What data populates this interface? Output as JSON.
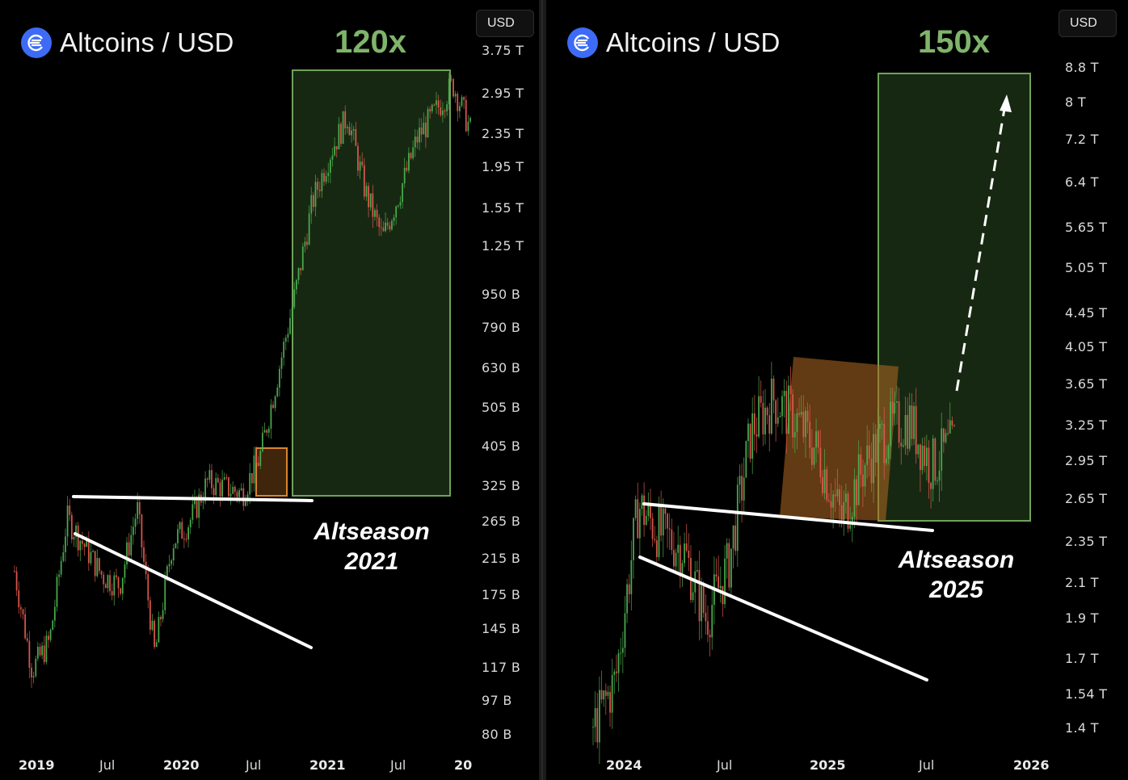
{
  "charts": [
    {
      "title": "Altcoins / USD",
      "currency": "USD",
      "multiplier_label": "120x",
      "season_label": "Altseason",
      "season_year": "2021",
      "y_ticks": [
        "3.75 T",
        "2.95 T",
        "2.35 T",
        "1.95 T",
        "1.55 T",
        "1.25 T",
        "950 B",
        "790 B",
        "630 B",
        "505 B",
        "405 B",
        "325 B",
        "265 B",
        "215 B",
        "175 B",
        "145 B",
        "117 B",
        "97 B",
        "80 B"
      ],
      "x_ticks": [
        {
          "label": "2019",
          "bold": true
        },
        {
          "label": "Jul",
          "bold": false
        },
        {
          "label": "2020",
          "bold": true
        },
        {
          "label": "Jul",
          "bold": false
        },
        {
          "label": "2021",
          "bold": true
        },
        {
          "label": "Jul",
          "bold": false
        },
        {
          "label": "20",
          "bold": true
        }
      ]
    },
    {
      "title": "Altcoins / USD",
      "currency": "USD",
      "multiplier_label": "150x",
      "season_label": "Altseason",
      "season_year": "2025",
      "y_ticks": [
        "8.8 T",
        "8 T",
        "7.2 T",
        "6.4 T",
        "5.65 T",
        "5.05 T",
        "4.45 T",
        "4.05 T",
        "3.65 T",
        "3.25 T",
        "2.95 T",
        "2.65 T",
        "2.35 T",
        "2.1 T",
        "1.9 T",
        "1.7 T",
        "1.54 T",
        "1.4 T"
      ],
      "x_ticks": [
        {
          "label": "2024",
          "bold": true
        },
        {
          "label": "Jul",
          "bold": false
        },
        {
          "label": "2025",
          "bold": true
        },
        {
          "label": "Jul",
          "bold": false
        },
        {
          "label": "2026",
          "bold": true
        }
      ]
    }
  ],
  "chart_data": [
    {
      "type": "candlestick",
      "title": "Altcoins / USD",
      "y_scale": "log",
      "y_unit": "USD",
      "x": [
        "2019-01",
        "2019-04",
        "2019-06",
        "2019-08",
        "2019-10",
        "2019-12",
        "2020-01",
        "2020-02",
        "2020-03",
        "2020-05",
        "2020-07",
        "2020-08",
        "2020-09",
        "2020-10",
        "2020-11",
        "2020-12",
        "2021-01",
        "2021-02",
        "2021-03",
        "2021-05",
        "2021-06",
        "2021-07",
        "2021-08",
        "2021-09",
        "2021-10",
        "2021-11",
        "2021-12"
      ],
      "y": [
        200,
        115,
        135,
        270,
        230,
        195,
        185,
        285,
        125,
        235,
        265,
        330,
        320,
        310,
        380,
        600,
        950,
        1600,
        2100,
        2600,
        1700,
        1300,
        1700,
        2300,
        2650,
        3100,
        2400
      ],
      "series_color_up": "#4caf50",
      "series_color_down": "#e05a4f"
    },
    {
      "type": "candlestick",
      "title": "Altcoins / USD",
      "y_scale": "log",
      "y_unit": "USD",
      "x": [
        "2023-11",
        "2024-01",
        "2024-03",
        "2024-05",
        "2024-07",
        "2024-08",
        "2024-10",
        "2024-11",
        "2024-12",
        "2025-01",
        "2025-02",
        "2025-03",
        "2025-04",
        "2025-05",
        "2025-06",
        "2025-07",
        "2025-08"
      ],
      "y": [
        1.4,
        1.6,
        2.6,
        2.4,
        2.3,
        1.9,
        2.2,
        3.2,
        3.5,
        3.3,
        3.0,
        2.5,
        2.9,
        3.2,
        3.3,
        2.9,
        3.1
      ],
      "series_color_up": "#4caf50",
      "series_color_down": "#e05a4f"
    }
  ],
  "colors": {
    "accent_green": "#7fb46a",
    "box_green_fill": "#1f3518",
    "box_green_stroke": "#6fa35a",
    "box_orange": "#b36a22",
    "logo_blue": "#3d6bf5"
  },
  "icons": {
    "logo": "altcoins-logo-icon"
  }
}
